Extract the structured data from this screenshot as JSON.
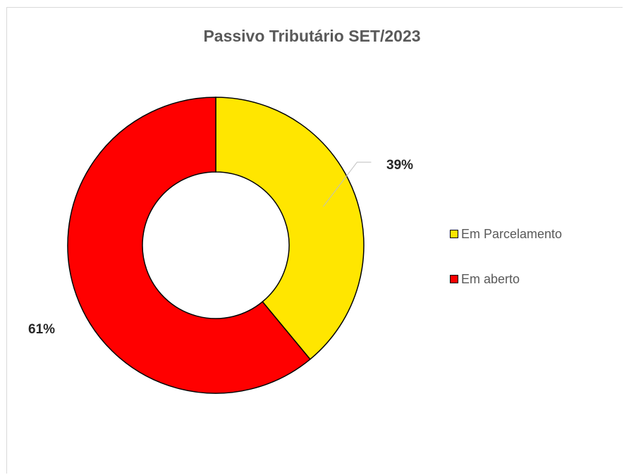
{
  "chart_data": {
    "type": "pie",
    "variant": "donut",
    "title": "Passivo Tributário SET/2023",
    "categories": [
      "Em Parcelamento",
      "Em aberto"
    ],
    "values": [
      39,
      61
    ],
    "data_labels": [
      "39%",
      "61%"
    ],
    "colors": [
      "#ffe600",
      "#ff0000"
    ],
    "legend_position": "right"
  }
}
